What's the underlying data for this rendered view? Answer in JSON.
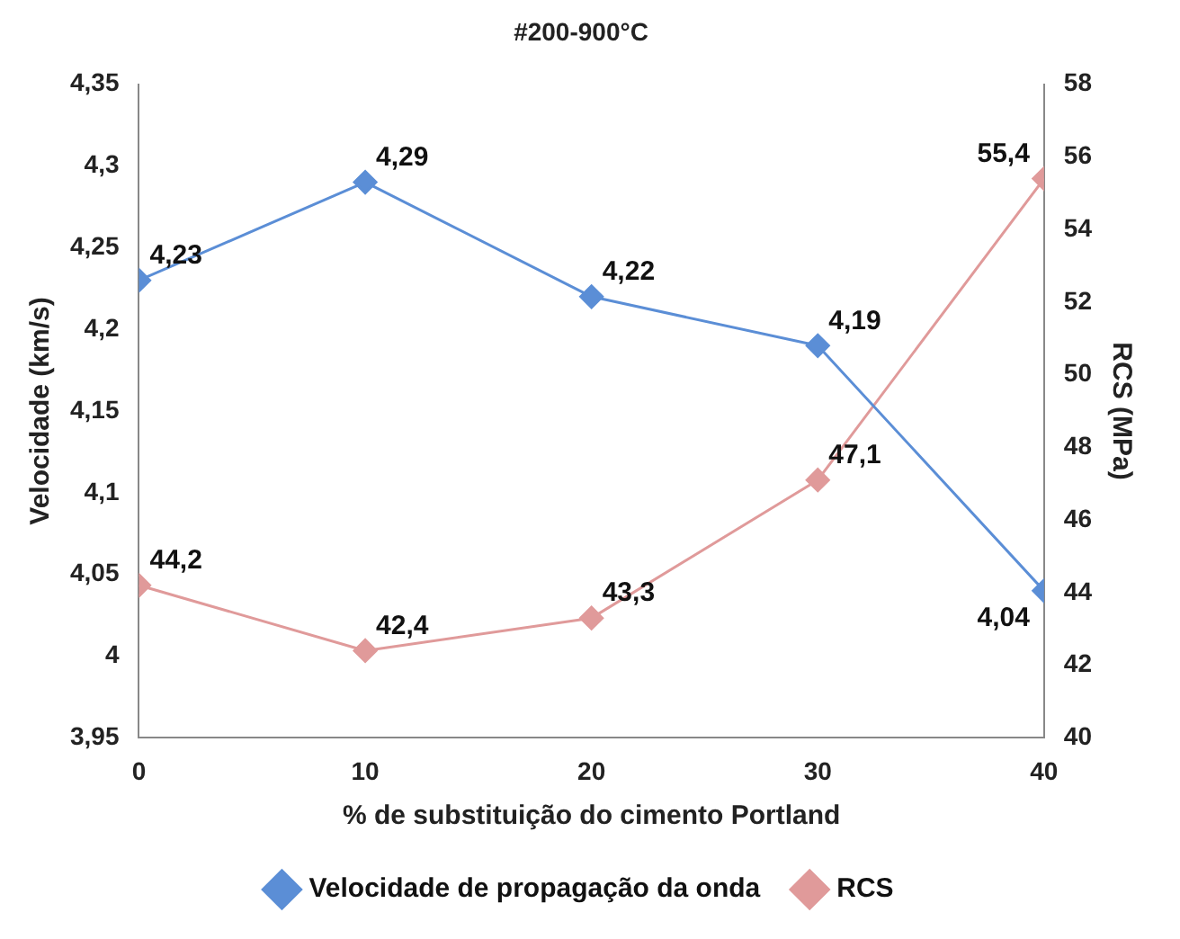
{
  "chart_data": {
    "type": "line",
    "title": "#200-900°C",
    "xlabel": "% de substituição do cimento Portland",
    "ylabel": "Velocidade (km/s)",
    "y2label": "RCS (MPa)",
    "x": [
      0,
      10,
      20,
      30,
      40
    ],
    "xlim": [
      0,
      40
    ],
    "xticks": [
      0,
      10,
      20,
      30,
      40
    ],
    "ylim": [
      3.95,
      4.35
    ],
    "yticks": [
      {
        "value": 3.95,
        "label": "3,95"
      },
      {
        "value": 4,
        "label": "4"
      },
      {
        "value": 4.05,
        "label": "4,05"
      },
      {
        "value": 4.1,
        "label": "4,1"
      },
      {
        "value": 4.15,
        "label": "4,15"
      },
      {
        "value": 4.2,
        "label": "4,2"
      },
      {
        "value": 4.25,
        "label": "4,25"
      },
      {
        "value": 4.3,
        "label": "4,3"
      },
      {
        "value": 4.35,
        "label": "4,35"
      }
    ],
    "y2lim": [
      40,
      58
    ],
    "y2ticks": [
      40,
      42,
      44,
      46,
      48,
      50,
      52,
      54,
      56,
      58
    ],
    "series": [
      {
        "name": "Velocidade de propagação da onda",
        "color": "#5b8ed6",
        "values": [
          4.23,
          4.29,
          4.22,
          4.19,
          4.04
        ],
        "value_labels": [
          "4,23",
          "4,29",
          "4,22",
          "4,19",
          "4,04"
        ]
      },
      {
        "name": "RCS",
        "color": "#e09a9a",
        "axis": "y2",
        "values": [
          44.2,
          42.4,
          43.3,
          47.1,
          55.4
        ],
        "value_labels": [
          "44,2",
          "42,4",
          "43,3",
          "47,1",
          "55,4"
        ]
      }
    ],
    "marker": "diamond",
    "line_style": "solid",
    "grid": false,
    "legend": "bottom"
  }
}
